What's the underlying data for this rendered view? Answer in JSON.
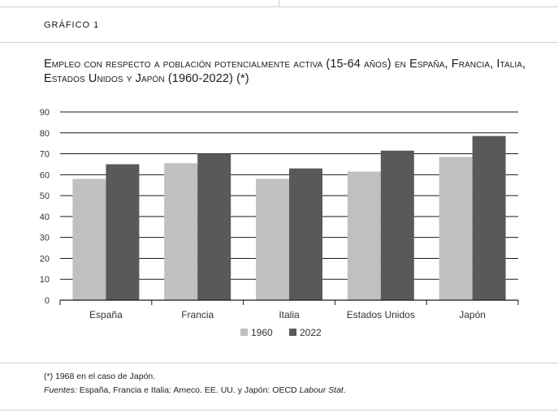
{
  "header": {
    "label": "Gráfico 1"
  },
  "chart_data": {
    "type": "bar",
    "title": "Empleo con respecto a población potencialmente activa (15-64 años) en España, Francia, Italia, Estados Unidos y Japón (1960-2022) (*)",
    "categories": [
      "España",
      "Francia",
      "Italia",
      "Estados Unidos",
      "Japón"
    ],
    "series": [
      {
        "name": "1960",
        "values": [
          58,
          65.5,
          58,
          61.5,
          68.5
        ],
        "color": "#c0c0c0"
      },
      {
        "name": "2022",
        "values": [
          65,
          70,
          63,
          71.5,
          78.5
        ],
        "color": "#595959"
      }
    ],
    "ylim": [
      0,
      90
    ],
    "yticks": [
      0,
      10,
      20,
      30,
      40,
      50,
      60,
      70,
      80,
      90
    ],
    "grid": true,
    "legend": "bottom-center"
  },
  "notes": {
    "footnote": "(*) 1968 en el caso de Japón.",
    "sources_label": "Fuentes:",
    "sources_text_1": " España, Francia e Italia: Ameco. EE. UU. y Japón: OECD ",
    "sources_italic": "Labour Stat",
    "sources_end": "."
  }
}
